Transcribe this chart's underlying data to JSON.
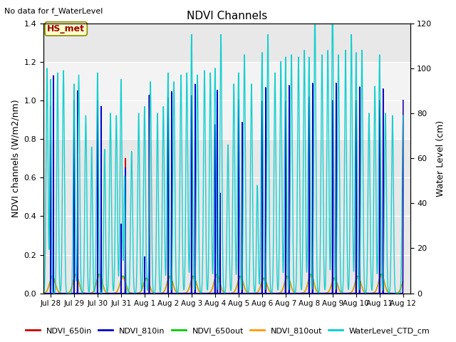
{
  "title": "NDVI Channels",
  "subtitle": "No data for f_WaterLevel",
  "ylabel_left": "NDVI channels (W/m2/nm)",
  "ylabel_right": "Water Level (cm)",
  "ylim_left": [
    0,
    1.4
  ],
  "ylim_right": [
    0,
    120
  ],
  "bg_color": "#e8e8e8",
  "xtick_labels": [
    "Jul 28",
    "Jul 29",
    "Jul 30",
    "Jul 31",
    "Aug 1",
    "Aug 2",
    "Aug 3",
    "Aug 4",
    "Aug 5",
    "Aug 6",
    "Aug 7",
    "Aug 8",
    "Aug 9",
    "Aug 10",
    "Aug 11",
    "Aug 12"
  ],
  "yticks_left": [
    0.0,
    0.2,
    0.4,
    0.6,
    0.8,
    1.0,
    1.2,
    1.4
  ],
  "yticks_right": [
    0,
    20,
    40,
    60,
    80,
    100,
    120
  ],
  "ndvi_in_color": "#cc0000",
  "ndvi_810in_color": "#0000cc",
  "ndvi_650out_color": "#00cc00",
  "ndvi_810out_color": "#ff9900",
  "water_color": "#00cccc",
  "annotation_text": "HS_met",
  "grid_color": "#ffffff",
  "figsize": [
    6.4,
    4.8
  ],
  "dpi": 100
}
